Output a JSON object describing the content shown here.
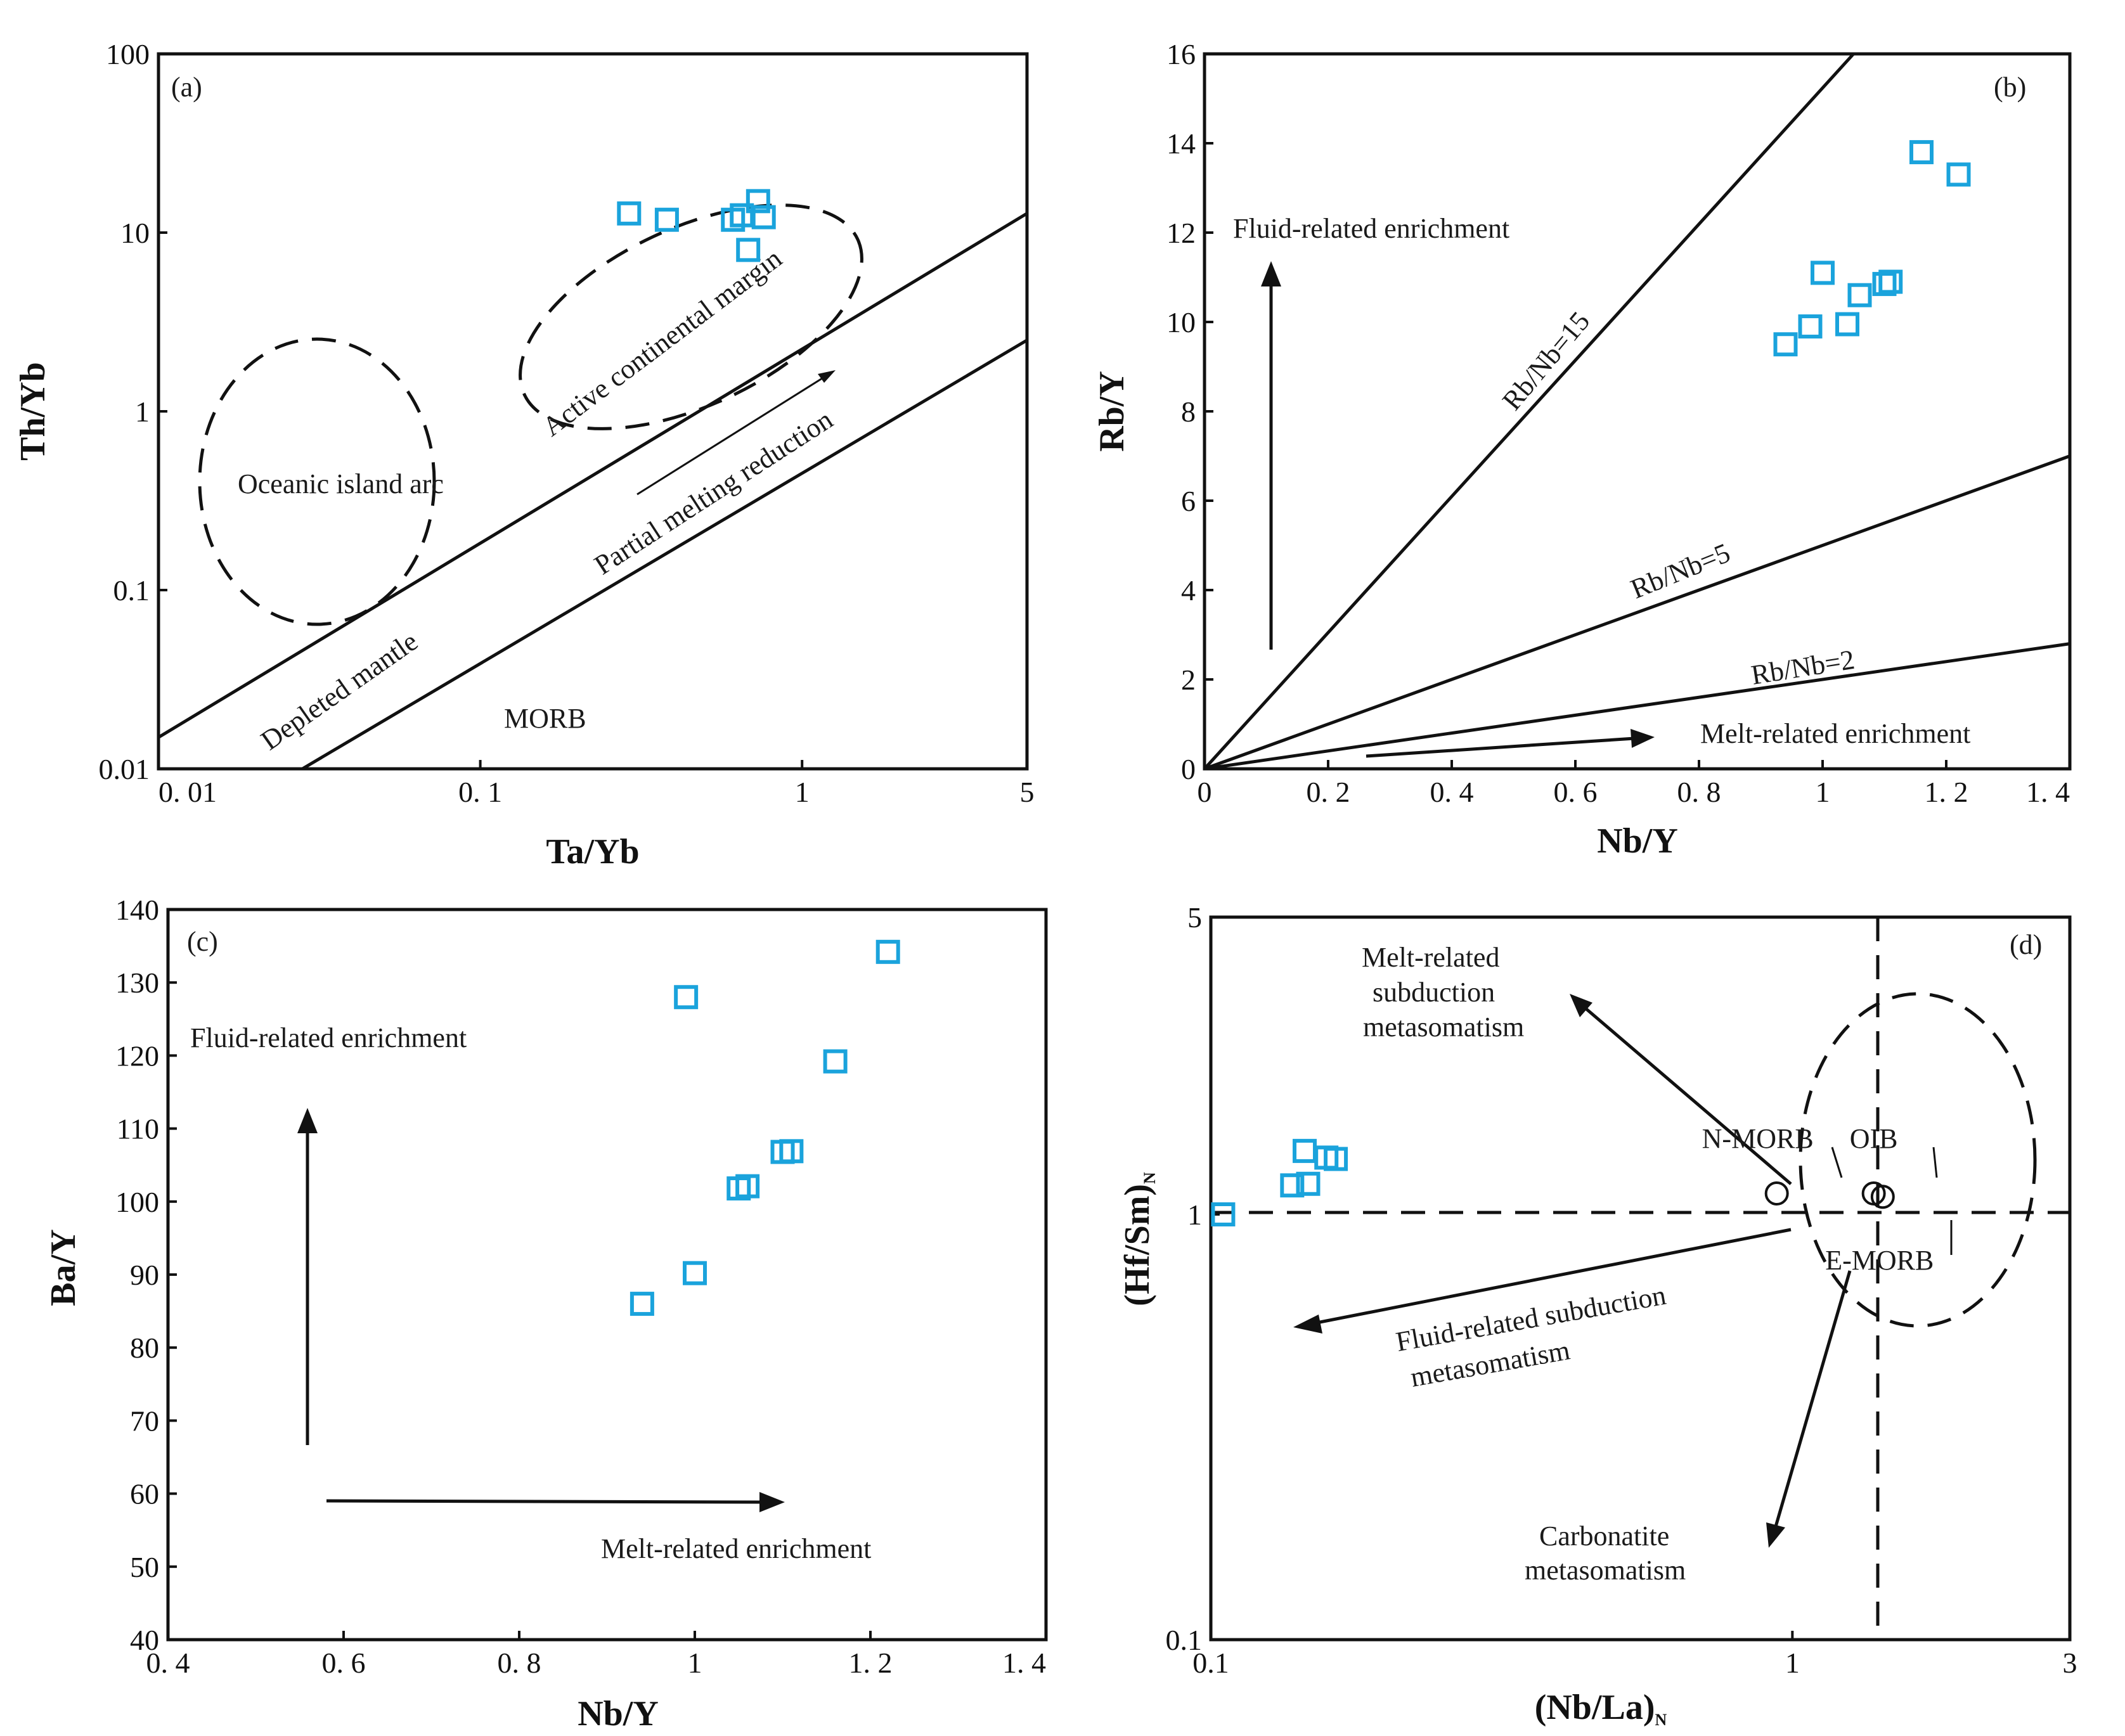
{
  "chart_data": [
    {
      "panel": "(a)",
      "type": "scatter",
      "xscale": "log",
      "yscale": "log",
      "xlabel": "Ta/Yb",
      "ylabel": "Th/Yb",
      "xlim": [
        0.01,
        5
      ],
      "ylim": [
        0.01,
        100
      ],
      "xticks": [
        {
          "v": 0.01,
          "label": "0. 01"
        },
        {
          "v": 0.1,
          "label": "0. 1"
        },
        {
          "v": 1,
          "label": "1"
        },
        {
          "v": 5,
          "label": "5"
        }
      ],
      "yticks": [
        {
          "v": 0.01,
          "label": "0.01"
        },
        {
          "v": 0.1,
          "label": "0.1"
        },
        {
          "v": 1,
          "label": "1"
        },
        {
          "v": 10,
          "label": "10"
        },
        {
          "v": 100,
          "label": "100"
        }
      ],
      "points": [
        [
          0.29,
          12.8
        ],
        [
          0.38,
          11.8
        ],
        [
          0.61,
          11.8
        ],
        [
          0.65,
          12.5
        ],
        [
          0.68,
          8.0
        ],
        [
          0.73,
          15.0
        ],
        [
          0.76,
          12.2
        ]
      ],
      "lines": [
        {
          "from": [
            0.01,
            0.015
          ],
          "to": [
            5,
            12.8
          ]
        },
        {
          "from": [
            0.028,
            0.01
          ],
          "to": [
            5,
            2.5
          ]
        }
      ],
      "annotations": [
        "Oceanic island arc",
        "Active continental margin",
        "Partial melting reduction",
        "Depleted mantle",
        "MORB"
      ]
    },
    {
      "panel": "(b)",
      "type": "scatter",
      "xlabel": "Nb/Y",
      "ylabel": "Rb/Y",
      "xlim": [
        0,
        1.4
      ],
      "ylim": [
        0,
        16
      ],
      "xticks": [
        {
          "v": 0,
          "label": "0"
        },
        {
          "v": 0.2,
          "label": "0. 2"
        },
        {
          "v": 0.4,
          "label": "0. 4"
        },
        {
          "v": 0.6,
          "label": "0. 6"
        },
        {
          "v": 0.8,
          "label": "0. 8"
        },
        {
          "v": 1.0,
          "label": "1"
        },
        {
          "v": 1.2,
          "label": "1. 2"
        },
        {
          "v": 1.4,
          "label": "1. 4"
        }
      ],
      "yticks": [
        {
          "v": 0,
          "label": "0"
        },
        {
          "v": 2,
          "label": "2"
        },
        {
          "v": 4,
          "label": "4"
        },
        {
          "v": 6,
          "label": "6"
        },
        {
          "v": 8,
          "label": "8"
        },
        {
          "v": 10,
          "label": "10"
        },
        {
          "v": 12,
          "label": "12"
        },
        {
          "v": 14,
          "label": "14"
        },
        {
          "v": 16,
          "label": "16"
        }
      ],
      "points": [
        [
          0.94,
          9.5
        ],
        [
          0.98,
          9.9
        ],
        [
          1.0,
          11.1
        ],
        [
          1.04,
          9.95
        ],
        [
          1.06,
          10.6
        ],
        [
          1.1,
          10.85
        ],
        [
          1.11,
          10.9
        ],
        [
          1.16,
          13.8
        ],
        [
          1.22,
          13.3
        ]
      ],
      "lines": [
        {
          "label": "Rb/Nb=15",
          "from": [
            0,
            0
          ],
          "to": [
            1.05,
            16
          ]
        },
        {
          "label": "Rb/Nb=5",
          "from": [
            0,
            0
          ],
          "to": [
            1.4,
            7
          ]
        },
        {
          "label": "Rb/Nb=2",
          "from": [
            0,
            0
          ],
          "to": [
            1.4,
            2.8
          ]
        }
      ],
      "annotations": [
        "Fluid-related enrichment",
        "Melt-related enrichment",
        "Rb/Nb=15",
        "Rb/Nb=5",
        "Rb/Nb=2"
      ]
    },
    {
      "panel": "(c)",
      "type": "scatter",
      "xlabel": "Nb/Y",
      "ylabel": "Ba/Y",
      "xlim": [
        0.4,
        1.4
      ],
      "ylim": [
        40,
        140
      ],
      "xticks": [
        {
          "v": 0.4,
          "label": "0. 4"
        },
        {
          "v": 0.6,
          "label": "0. 6"
        },
        {
          "v": 0.8,
          "label": "0. 8"
        },
        {
          "v": 1.0,
          "label": "1"
        },
        {
          "v": 1.2,
          "label": "1. 2"
        },
        {
          "v": 1.4,
          "label": "1. 4"
        }
      ],
      "yticks": [
        {
          "v": 40,
          "label": "40"
        },
        {
          "v": 50,
          "label": "50"
        },
        {
          "v": 60,
          "label": "60"
        },
        {
          "v": 70,
          "label": "70"
        },
        {
          "v": 80,
          "label": "80"
        },
        {
          "v": 90,
          "label": "90"
        },
        {
          "v": 100,
          "label": "100"
        },
        {
          "v": 110,
          "label": "110"
        },
        {
          "v": 120,
          "label": "120"
        },
        {
          "v": 130,
          "label": "130"
        },
        {
          "v": 140,
          "label": "140"
        }
      ],
      "points": [
        [
          0.94,
          86
        ],
        [
          0.99,
          128
        ],
        [
          1.0,
          90.2
        ],
        [
          1.05,
          101.8
        ],
        [
          1.06,
          102.1
        ],
        [
          1.1,
          106.8
        ],
        [
          1.11,
          106.9
        ],
        [
          1.16,
          119.2
        ],
        [
          1.22,
          134.2
        ]
      ],
      "annotations": [
        "Fluid-related enrichment",
        "Melt-related enrichment"
      ]
    },
    {
      "panel": "(d)",
      "type": "scatter",
      "xscale": "log",
      "yscale": "log",
      "xlabel": "(Nb/La)",
      "ylabel": "(Hf/Sm)",
      "label_subscript": "N",
      "xlim": [
        0.1,
        3
      ],
      "ylim": [
        0.1,
        5
      ],
      "xticks": [
        {
          "v": 0.1,
          "label": "0.1"
        },
        {
          "v": 1,
          "label": "1"
        },
        {
          "v": 3,
          "label": "3"
        }
      ],
      "yticks": [
        {
          "v": 0.1,
          "label": "0.1"
        },
        {
          "v": 1,
          "label": "1"
        },
        {
          "v": 5,
          "label": "5"
        }
      ],
      "points": [
        [
          0.105,
          1.0
        ],
        [
          0.138,
          1.17
        ],
        [
          0.145,
          1.41
        ],
        [
          0.147,
          1.18
        ],
        [
          0.158,
          1.36
        ],
        [
          0.164,
          1.35
        ]
      ],
      "references": [
        {
          "label": "N-MORB",
          "x": 0.94,
          "y": 1.12
        },
        {
          "label": "OIB",
          "x": 1.38,
          "y": 1.12
        },
        {
          "label": "E-MORB",
          "x": 1.43,
          "y": 1.1
        }
      ],
      "annotations": [
        "Melt-related",
        "subduction",
        "metasomatism",
        "Fluid-related subduction",
        "metasomatism",
        "Carbonatite",
        "metasomatism"
      ]
    }
  ]
}
